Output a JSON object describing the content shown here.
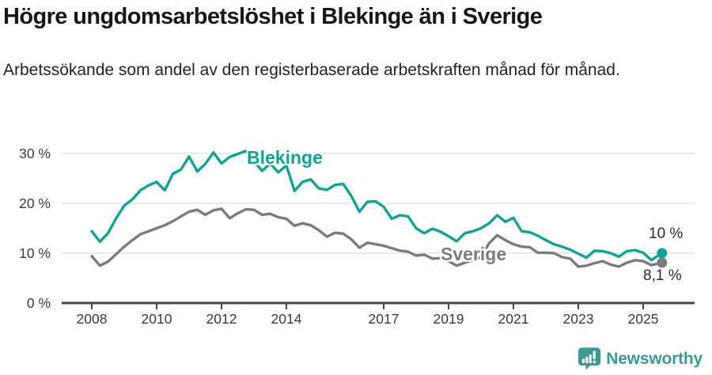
{
  "header": {
    "title": "Högre ungdomsarbetslöshet i Blekinge än i Sverige",
    "subtitle": "Arbetssökande som andel av den registerbaserade arbetskraften månad för månad."
  },
  "chart_data": {
    "type": "line",
    "title": "Högre ungdomsarbetslöshet i Blekinge än i Sverige",
    "xlabel": "",
    "ylabel": "",
    "unit": "%",
    "grid": true,
    "legend_position": "inline-labels",
    "grid_color": "#e4e4e4",
    "axis_color": "#474747",
    "x_axis": {
      "range": [
        2007.1,
        2025.9
      ],
      "tick_values": [
        2008,
        2010,
        2012,
        2014,
        2017,
        2019,
        2021,
        2023,
        2025
      ],
      "tick_labels": [
        "2008",
        "2010",
        "2012",
        "2014",
        "2017",
        "2019",
        "2021",
        "2023",
        "2025"
      ]
    },
    "y_axis": {
      "range": [
        0,
        32
      ],
      "tick_values": [
        0,
        10,
        20,
        30
      ],
      "tick_labels": [
        "0 %",
        "10 %",
        "20 %",
        "30 %"
      ]
    },
    "x": [
      2008,
      2008.25,
      2008.5,
      2008.75,
      2009,
      2009.25,
      2009.5,
      2009.75,
      2010,
      2010.25,
      2010.5,
      2010.75,
      2011,
      2011.25,
      2011.5,
      2011.75,
      2012,
      2012.25,
      2012.5,
      2012.75,
      2013,
      2013.25,
      2013.5,
      2013.75,
      2014,
      2014.25,
      2014.5,
      2014.75,
      2015,
      2015.25,
      2015.5,
      2015.75,
      2016,
      2016.25,
      2016.5,
      2016.75,
      2017,
      2017.25,
      2017.5,
      2017.75,
      2018,
      2018.25,
      2018.5,
      2018.75,
      2019,
      2019.25,
      2019.5,
      2019.75,
      2020,
      2020.25,
      2020.5,
      2020.75,
      2021,
      2021.25,
      2021.5,
      2021.75,
      2022,
      2022.25,
      2022.5,
      2022.75,
      2023,
      2023.25,
      2023.5,
      2023.75,
      2024,
      2024.25,
      2024.5,
      2024.75,
      2025,
      2025.25,
      2025.58
    ],
    "series": [
      {
        "name": "Blekinge",
        "color": "#14a294",
        "end_label": "10 %",
        "end_value": 10.0,
        "values": [
          14.4,
          12.3,
          14.0,
          17.0,
          19.5,
          20.8,
          22.6,
          23.6,
          24.3,
          22.6,
          25.9,
          26.8,
          29.4,
          26.4,
          27.9,
          30.2,
          28.0,
          29.3,
          29.9,
          30.5,
          28.5,
          26.5,
          28.0,
          26.2,
          27.6,
          22.5,
          24.3,
          24.8,
          23.0,
          22.7,
          23.7,
          23.9,
          21.5,
          18.3,
          20.3,
          20.4,
          19.3,
          16.9,
          17.6,
          17.4,
          15.0,
          14.0,
          14.9,
          14.3,
          13.4,
          12.4,
          14.0,
          14.4,
          15.0,
          16.0,
          17.6,
          16.3,
          17.1,
          14.4,
          14.2,
          13.5,
          12.6,
          11.8,
          11.3,
          10.7,
          9.9,
          9.1,
          10.5,
          10.4,
          10.0,
          9.3,
          10.4,
          10.6,
          10.1,
          8.6,
          10.0
        ]
      },
      {
        "name": "Sverige",
        "color": "#7c7c7c",
        "end_label": "8,1 %",
        "end_value": 8.1,
        "values": [
          9.4,
          7.5,
          8.3,
          9.8,
          11.3,
          12.6,
          13.8,
          14.4,
          15.0,
          15.6,
          16.4,
          17.4,
          18.3,
          18.7,
          17.7,
          18.6,
          18.9,
          17.0,
          18.0,
          18.8,
          18.7,
          17.7,
          17.9,
          17.2,
          16.9,
          15.5,
          16.0,
          15.6,
          14.6,
          13.3,
          14.1,
          13.9,
          12.8,
          11.1,
          12.1,
          11.8,
          11.5,
          11.0,
          10.5,
          10.3,
          9.5,
          9.7,
          8.9,
          9.0,
          8.4,
          7.5,
          8.1,
          8.6,
          9.2,
          12.0,
          13.6,
          12.6,
          11.8,
          11.3,
          11.2,
          10.1,
          10.1,
          10.0,
          9.2,
          8.9,
          7.3,
          7.5,
          8.0,
          8.4,
          7.7,
          7.3,
          8.1,
          8.6,
          8.4,
          7.6,
          8.1
        ]
      }
    ]
  },
  "footer": {
    "brand": "Newsworthy",
    "brand_color": "#3b9a96",
    "logo_icon": "newsworthy-speech-bubble-bar-chart-icon"
  }
}
